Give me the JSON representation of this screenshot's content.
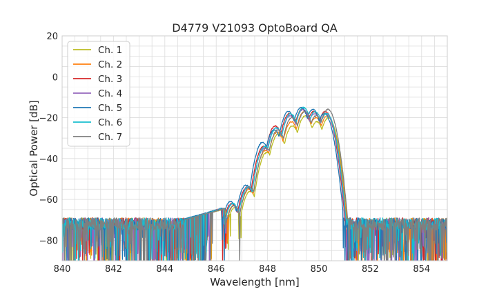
{
  "chart_data": {
    "type": "line",
    "title": "D4779 V21093 OptoBoard QA",
    "xlabel": "Wavelength [nm]",
    "ylabel": "Optical Power [dB]",
    "xlim": [
      840,
      855
    ],
    "ylim": [
      -90,
      20
    ],
    "xticks": [
      840,
      842,
      844,
      846,
      848,
      850,
      852,
      854
    ],
    "yticks": [
      -80,
      -60,
      -40,
      -20,
      0,
      20
    ],
    "xtick_labels": [
      "840",
      "842",
      "844",
      "846",
      "848",
      "850",
      "852",
      "854"
    ],
    "ytick_labels": [
      "−80",
      "−60",
      "−40",
      "−20",
      "0",
      "20"
    ],
    "grid": true,
    "legend_position": "top-left",
    "noise_floor_db": -72,
    "series": [
      {
        "name": "Ch. 1",
        "color": "#bcbd22",
        "peak_shift_nm": 0.12,
        "peaks": [
          [
            846.6,
            -64
          ],
          [
            847.2,
            -56
          ],
          [
            847.85,
            -37
          ],
          [
            848.3,
            -28
          ],
          [
            848.85,
            -24
          ],
          [
            849.35,
            -19
          ],
          [
            849.8,
            -22
          ],
          [
            850.25,
            -20
          ]
        ]
      },
      {
        "name": "Ch. 2",
        "color": "#ff7f0e",
        "peak_shift_nm": 0.08,
        "peaks": [
          [
            846.6,
            -63
          ],
          [
            847.2,
            -55
          ],
          [
            847.85,
            -36
          ],
          [
            848.3,
            -27
          ],
          [
            848.85,
            -22
          ],
          [
            849.35,
            -17
          ],
          [
            849.8,
            -20
          ],
          [
            850.25,
            -19
          ]
        ]
      },
      {
        "name": "Ch. 3",
        "color": "#d62728",
        "peak_shift_nm": 0.0,
        "peaks": [
          [
            846.6,
            -62
          ],
          [
            847.2,
            -54
          ],
          [
            847.85,
            -34
          ],
          [
            848.3,
            -24
          ],
          [
            848.85,
            -18
          ],
          [
            849.35,
            -16
          ],
          [
            849.8,
            -17
          ],
          [
            850.25,
            -17
          ]
        ]
      },
      {
        "name": "Ch. 4",
        "color": "#9467bd",
        "peak_shift_nm": 0.03,
        "peaks": [
          [
            846.6,
            -62
          ],
          [
            847.2,
            -54
          ],
          [
            847.85,
            -35
          ],
          [
            848.3,
            -25
          ],
          [
            848.85,
            -19
          ],
          [
            849.35,
            -16
          ],
          [
            849.8,
            -18
          ],
          [
            850.25,
            -18
          ]
        ]
      },
      {
        "name": "Ch. 5",
        "color": "#1f77b4",
        "peak_shift_nm": -0.04,
        "peaks": [
          [
            846.6,
            -61
          ],
          [
            847.2,
            -53
          ],
          [
            847.85,
            -32
          ],
          [
            848.3,
            -26
          ],
          [
            848.85,
            -17
          ],
          [
            849.35,
            -15
          ],
          [
            849.8,
            -16
          ],
          [
            850.25,
            -18
          ]
        ]
      },
      {
        "name": "Ch. 6",
        "color": "#17becf",
        "peak_shift_nm": 0.05,
        "peaks": [
          [
            846.6,
            -62
          ],
          [
            847.2,
            -54
          ],
          [
            847.85,
            -34
          ],
          [
            848.3,
            -25
          ],
          [
            848.85,
            -18
          ],
          [
            849.35,
            -15
          ],
          [
            849.8,
            -17
          ],
          [
            850.25,
            -18
          ]
        ]
      },
      {
        "name": "Ch. 7",
        "color": "#7f7f7f",
        "peak_shift_nm": 0.1,
        "peaks": [
          [
            846.6,
            -63
          ],
          [
            847.2,
            -54
          ],
          [
            847.85,
            -35
          ],
          [
            848.3,
            -26
          ],
          [
            848.85,
            -20
          ],
          [
            849.35,
            -17
          ],
          [
            849.8,
            -19
          ],
          [
            850.25,
            -16
          ]
        ]
      }
    ]
  }
}
